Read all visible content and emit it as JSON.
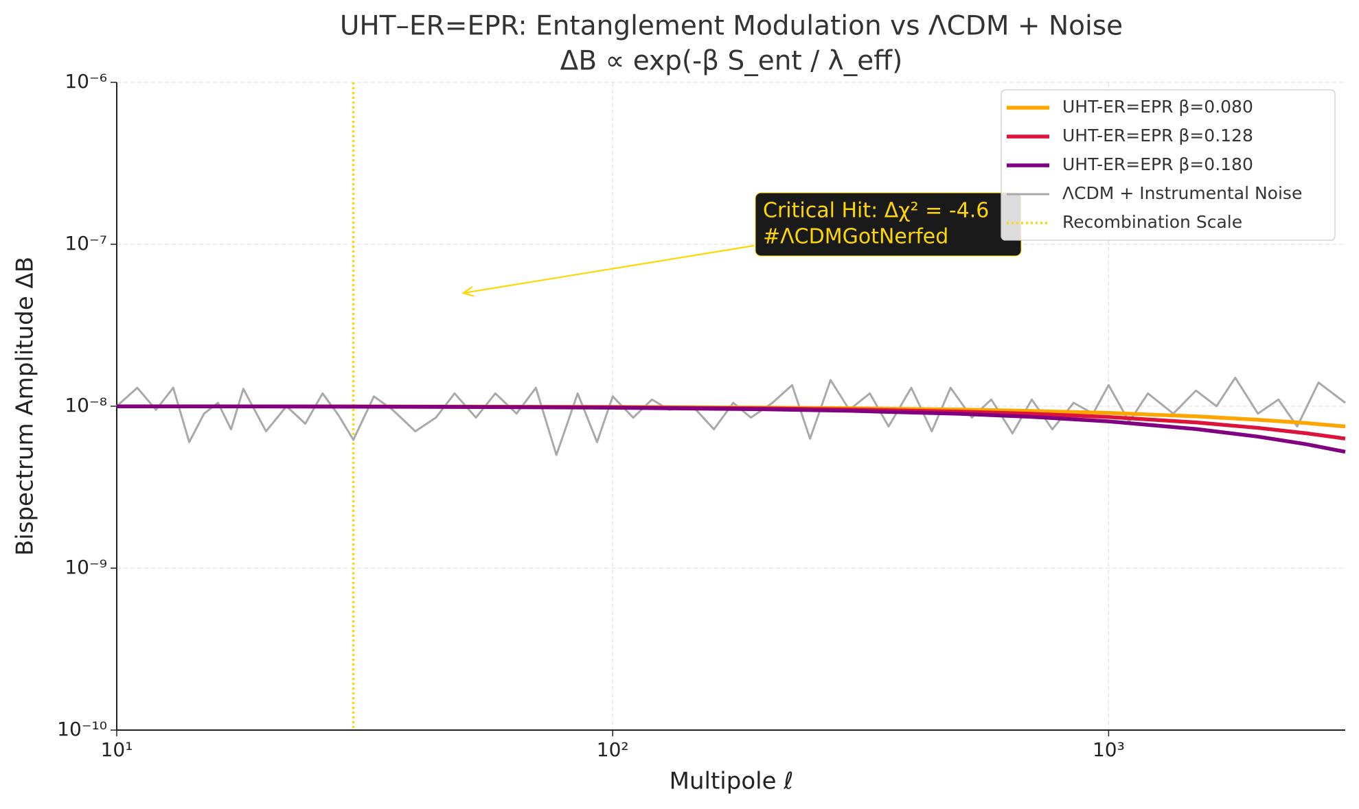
{
  "chart_data": {
    "type": "line",
    "title": "UHT–ER=EPR: Entanglement Modulation vs ΛCDM + Noise",
    "subtitle": "ΔB ∝ exp(-β S_ent / λ_eff)",
    "x_label": "Multipole ℓ",
    "y_label": "Bispectrum Amplitude ΔB",
    "x_scale": "log",
    "y_scale": "log",
    "grid": true,
    "legend": "upper right",
    "xlim": [
      10,
      3000
    ],
    "ylim": [
      1e-10,
      1e-06
    ],
    "xticks": [
      {
        "value": 10,
        "label": "10¹"
      },
      {
        "value": 100,
        "label": "10²"
      },
      {
        "value": 1000,
        "label": "10³"
      }
    ],
    "yticks": [
      {
        "value": 1e-10,
        "label": "10⁻¹⁰"
      },
      {
        "value": 1e-09,
        "label": "10⁻⁹"
      },
      {
        "value": 1e-08,
        "label": "10⁻⁸"
      },
      {
        "value": 1e-07,
        "label": "10⁻⁷"
      },
      {
        "value": 1e-06,
        "label": "10⁻⁶"
      }
    ],
    "x": [
      10,
      20,
      30,
      50,
      100,
      200,
      300,
      500,
      700,
      1000,
      1500,
      2000,
      2500,
      3000
    ],
    "series": [
      {
        "name": "UHT-ER=EPR β=0.080",
        "color": "#FFA500",
        "values": [
          9.99e-09,
          9.98e-09,
          9.97e-09,
          9.95e-09,
          9.9e-09,
          9.81e-09,
          9.72e-09,
          9.53e-09,
          9.35e-09,
          9.09e-09,
          8.66e-09,
          8.25e-09,
          7.87e-09,
          7.5e-09
        ]
      },
      {
        "name": "UHT-ER=EPR β=0.128",
        "color": "#DC143C",
        "values": [
          9.98e-09,
          9.97e-09,
          9.95e-09,
          9.92e-09,
          9.85e-09,
          9.7e-09,
          9.55e-09,
          9.26e-09,
          8.98e-09,
          8.58e-09,
          7.94e-09,
          7.35e-09,
          6.81e-09,
          6.31e-09
        ]
      },
      {
        "name": "UHT-ER=EPR β=0.180",
        "color": "#800080",
        "values": [
          9.98e-09,
          9.96e-09,
          9.94e-09,
          9.89e-09,
          9.79e-09,
          9.58e-09,
          9.37e-09,
          8.98e-09,
          8.6e-09,
          8.06e-09,
          7.23e-09,
          6.49e-09,
          5.83e-09,
          5.23e-09
        ]
      },
      {
        "name": "ΛCDM + Instrumental Noise",
        "color": "#A9A9A9",
        "x": [
          10,
          11,
          12,
          13,
          14,
          15,
          16,
          17,
          18,
          20,
          22,
          24,
          26,
          28,
          30,
          33,
          36,
          40,
          44,
          48,
          53,
          58,
          64,
          70,
          77,
          85,
          93,
          100,
          110,
          120,
          130,
          145,
          160,
          175,
          190,
          210,
          230,
          250,
          275,
          300,
          330,
          360,
          400,
          440,
          480,
          530,
          580,
          640,
          700,
          770,
          850,
          930,
          1000,
          1100,
          1200,
          1350,
          1500,
          1650,
          1800,
          2000,
          2200,
          2400,
          2650,
          3000
        ],
        "values": [
          1e-08,
          1.3e-08,
          9.5e-09,
          1.3e-08,
          6e-09,
          9e-09,
          1.05e-08,
          7.2e-09,
          1.28e-08,
          7e-09,
          1e-08,
          7.8e-09,
          1.2e-08,
          8.8e-09,
          6.2e-09,
          1.15e-08,
          9.5e-09,
          7e-09,
          8.5e-09,
          1.2e-08,
          8.5e-09,
          1.2e-08,
          9e-09,
          1.3e-08,
          5e-09,
          1.2e-08,
          6e-09,
          1.15e-08,
          8.5e-09,
          1.1e-08,
          9.5e-09,
          1e-08,
          7.2e-09,
          1.05e-08,
          8.5e-09,
          1.05e-08,
          1.35e-08,
          6.3e-09,
          1.45e-08,
          9.5e-09,
          1.2e-08,
          7.5e-09,
          1.3e-08,
          7e-09,
          1.3e-08,
          8.5e-09,
          1.1e-08,
          6.8e-09,
          1.1e-08,
          7.2e-09,
          1.05e-08,
          9e-09,
          1.35e-08,
          8e-09,
          1.2e-08,
          9e-09,
          1.25e-08,
          1e-08,
          1.5e-08,
          9e-09,
          1.1e-08,
          7.5e-09,
          1.4e-08,
          1.05e-08
        ]
      }
    ],
    "vline": {
      "name": "Recombination Scale",
      "x": 30,
      "color": "#FFD700"
    },
    "annotation": {
      "lines": [
        "Critical Hit: Δχ² = -4.6",
        "#ΛCDMGotNerfed"
      ],
      "xy": [
        50,
        5e-08
      ],
      "color": "#FFD700"
    }
  }
}
